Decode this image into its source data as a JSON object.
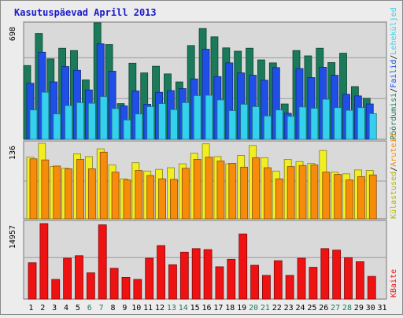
{
  "title": "Kasutuspäevad Aprill 2013",
  "chart_data": [
    {
      "type": "bar",
      "panel": "top",
      "y_tick_label": "698",
      "ylim": [
        0,
        698
      ],
      "categories": [
        "1",
        "2",
        "3",
        "4",
        "5",
        "6",
        "7",
        "8",
        "9",
        "10",
        "11",
        "12",
        "13",
        "14",
        "15",
        "16",
        "17",
        "18",
        "19",
        "20",
        "21",
        "22",
        "23",
        "24",
        "25",
        "26",
        "27",
        "28",
        "29",
        "30",
        "31"
      ],
      "series": [
        {
          "name": "Pöördumisi",
          "color": "#1a7a5a",
          "values": [
            442,
            634,
            482,
            546,
            532,
            356,
            700,
            568,
            214,
            456,
            398,
            438,
            392,
            344,
            562,
            664,
            614,
            548,
            528,
            546,
            476,
            458,
            212,
            532,
            500,
            546,
            460,
            516,
            316,
            246,
            0
          ]
        },
        {
          "name": "Failid",
          "color": "#1f4fe6",
          "values": [
            336,
            522,
            344,
            436,
            414,
            296,
            572,
            408,
            200,
            290,
            210,
            282,
            292,
            304,
            362,
            540,
            376,
            458,
            398,
            384,
            354,
            430,
            156,
            424,
            370,
            432,
            384,
            270,
            260,
            212,
            0
          ]
        },
        {
          "name": "Leheküljed",
          "color": "#35d0ee",
          "values": [
            176,
            282,
            152,
            202,
            220,
            216,
            256,
            184,
            116,
            152,
            196,
            214,
            178,
            220,
            262,
            264,
            236,
            172,
            210,
            196,
            140,
            176,
            138,
            194,
            186,
            240,
            190,
            174,
            190,
            154,
            0
          ]
        }
      ]
    },
    {
      "type": "bar",
      "panel": "middle",
      "y_tick_label": "136",
      "ylim": [
        0,
        136
      ],
      "categories": [
        "1",
        "2",
        "3",
        "4",
        "5",
        "6",
        "7",
        "8",
        "9",
        "10",
        "11",
        "12",
        "13",
        "14",
        "15",
        "16",
        "17",
        "18",
        "19",
        "20",
        "21",
        "22",
        "23",
        "24",
        "25",
        "26",
        "27",
        "28",
        "29",
        "30",
        "31"
      ],
      "series": [
        {
          "name": "Külastused",
          "color": "#f2ee24",
          "values": [
            111,
            136,
            94,
            91,
            117,
            112,
            126,
            97,
            72,
            101,
            86,
            89,
            92,
            99,
            118,
            135,
            112,
            99,
            114,
            132,
            110,
            86,
            107,
            103,
            100,
            123,
            84,
            81,
            88,
            87,
            0
          ]
        },
        {
          "name": "Aruteid",
          "color": "#f78c0a",
          "values": [
            108,
            106,
            95,
            90,
            107,
            90,
            120,
            84,
            70,
            87,
            78,
            72,
            71,
            91,
            107,
            111,
            104,
            100,
            93,
            110,
            92,
            72,
            94,
            96,
            97,
            84,
            80,
            70,
            76,
            79,
            0
          ]
        }
      ]
    },
    {
      "type": "bar",
      "panel": "bottom",
      "y_tick_label": "14957",
      "ylim": [
        0,
        14957
      ],
      "categories": [
        "1",
        "2",
        "3",
        "4",
        "5",
        "6",
        "7",
        "8",
        "9",
        "10",
        "11",
        "12",
        "13",
        "14",
        "15",
        "16",
        "17",
        "18",
        "19",
        "20",
        "21",
        "22",
        "23",
        "24",
        "25",
        "26",
        "27",
        "28",
        "29",
        "30",
        "31"
      ],
      "series": [
        {
          "name": "KBaite",
          "color": "#ee1212",
          "values": [
            7200,
            15700,
            3900,
            8100,
            8600,
            5200,
            14700,
            6100,
            4300,
            3900,
            8100,
            10600,
            6800,
            9300,
            10000,
            9800,
            6400,
            7900,
            12900,
            6700,
            4700,
            7600,
            4700,
            8100,
            6300,
            10000,
            9700,
            8200,
            7400,
            4500,
            0
          ]
        }
      ]
    }
  ],
  "x_labels": [
    "1",
    "2",
    "3",
    "4",
    "5",
    "6",
    "7",
    "8",
    "9",
    "10",
    "11",
    "12",
    "13",
    "14",
    "15",
    "16",
    "17",
    "18",
    "19",
    "20",
    "21",
    "22",
    "23",
    "24",
    "25",
    "26",
    "27",
    "28",
    "29",
    "30",
    "31"
  ],
  "weekend_days": [
    "6",
    "7",
    "13",
    "14",
    "20",
    "21",
    "27",
    "28"
  ],
  "label_colors": {
    "weekday": "#000000",
    "weekend": "#1a7a5a"
  },
  "right_legend_top": [
    "Pöördumisi",
    "/",
    "Failid",
    "/",
    "Leheküljed"
  ],
  "right_legend_middle": [
    "Külastused",
    "/",
    "Aruteid"
  ],
  "right_legend_bottom": [
    "KBaite"
  ],
  "colors": {
    "background": "#ececec",
    "panel": "#d9d9d9",
    "border": "#777777",
    "title": "#1a1acc"
  }
}
